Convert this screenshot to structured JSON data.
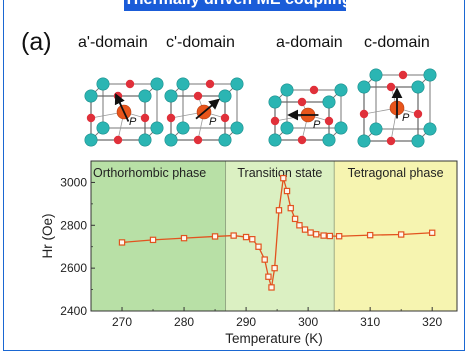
{
  "banner": {
    "text": "Thermally driven ME coupling"
  },
  "panel_label": "(a)",
  "domains": [
    {
      "label": "a'-domain",
      "moment_label": "P"
    },
    {
      "label": "c'-domain",
      "moment_label": "P"
    },
    {
      "label": "a-domain",
      "moment_label": "P"
    },
    {
      "label": "c-domain",
      "moment_label": "P"
    }
  ],
  "colors": {
    "frame": "#1a67d2",
    "banner": "#1a5cd8",
    "orthorhombic_band": "#b8e0a6",
    "transition_band": "#dbf0c2",
    "tetragonal_band": "#f6f4b0",
    "series": "#e2531f",
    "atom_corner": "#2bb5b3",
    "atom_face": "#e0303a",
    "atom_center": "#e8551b"
  },
  "chart_data": {
    "type": "line",
    "xlabel": "Temperature (K)",
    "ylabel": "Hr (Oe)",
    "xlim": [
      265,
      324
    ],
    "ylim": [
      2400,
      3100
    ],
    "xticks": [
      270,
      280,
      290,
      300,
      310,
      320
    ],
    "yticks": [
      2400,
      2600,
      2800,
      3000
    ],
    "regions": [
      {
        "label": "Orthorhombic phase",
        "from": 265,
        "to": 286.7
      },
      {
        "label": "Transition state",
        "from": 286.7,
        "to": 304.2
      },
      {
        "label": "Tetragonal phase",
        "from": 304.2,
        "to": 324
      }
    ],
    "series": [
      {
        "marker": "open-square",
        "points": [
          [
            270,
            2720
          ],
          [
            275,
            2732
          ],
          [
            280,
            2740
          ],
          [
            285,
            2748
          ],
          [
            288,
            2752
          ],
          [
            290,
            2745
          ],
          [
            291,
            2735
          ],
          [
            292,
            2700
          ],
          [
            293,
            2640
          ],
          [
            293.6,
            2560
          ],
          [
            294.1,
            2510
          ],
          [
            294.6,
            2600
          ],
          [
            295.3,
            2870
          ],
          [
            296,
            3020
          ],
          [
            296.6,
            2960
          ],
          [
            297.2,
            2880
          ],
          [
            297.9,
            2830
          ],
          [
            298.6,
            2800
          ],
          [
            299.5,
            2780
          ],
          [
            300.4,
            2766
          ],
          [
            301.3,
            2758
          ],
          [
            302.5,
            2752
          ],
          [
            303.5,
            2750
          ],
          [
            305,
            2749
          ],
          [
            310,
            2754
          ],
          [
            315,
            2757
          ],
          [
            320,
            2765
          ]
        ]
      }
    ]
  }
}
